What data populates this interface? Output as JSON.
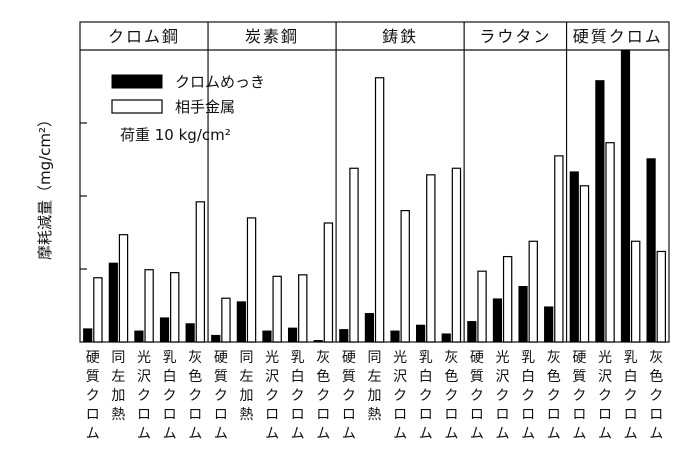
{
  "chart_data": {
    "type": "bar",
    "title": "",
    "ylabel": "摩耗減量（mg/cm²）",
    "xlabel": "",
    "ylim": [
      0,
      4
    ],
    "grid": false,
    "legend_position": "top-left",
    "annotation": "荷重 10 kg/cm²",
    "series": [
      {
        "name": "クロムめっき",
        "color": "#000000"
      },
      {
        "name": "相手金属",
        "color": "#ffffff"
      }
    ],
    "groups": [
      {
        "name": "クロム鋼",
        "categories": [
          "硬質クロム",
          "同左加熱",
          "光沢クロム",
          "乳白クロム",
          "灰色クロム"
        ],
        "values": [
          [
            0.18,
            0.88
          ],
          [
            1.08,
            1.47
          ],
          [
            0.15,
            0.99
          ],
          [
            0.33,
            0.95
          ],
          [
            0.25,
            1.92
          ]
        ]
      },
      {
        "name": "炭素鋼",
        "categories": [
          "硬質クロム",
          "同左加熱",
          "光沢クロム",
          "乳白クロム",
          "灰色クロム"
        ],
        "values": [
          [
            0.09,
            0.6
          ],
          [
            0.55,
            1.7
          ],
          [
            0.15,
            0.9
          ],
          [
            0.19,
            0.92
          ],
          [
            0.02,
            1.63
          ]
        ]
      },
      {
        "name": "鋳鉄",
        "categories": [
          "硬質クロム",
          "同左加熱",
          "光沢クロム",
          "乳白クロム",
          "灰色クロム"
        ],
        "values": [
          [
            0.17,
            2.38
          ],
          [
            0.39,
            3.62
          ],
          [
            0.15,
            1.8
          ],
          [
            0.23,
            2.29
          ],
          [
            0.11,
            2.38
          ]
        ]
      },
      {
        "name": "ラウタン",
        "categories": [
          "硬質クロム",
          "光沢クロム",
          "乳白クロム",
          "灰色クロム"
        ],
        "values": [
          [
            0.28,
            0.97
          ],
          [
            0.59,
            1.17
          ],
          [
            0.76,
            1.38
          ],
          [
            0.48,
            2.55
          ]
        ]
      },
      {
        "name": "硬質クロム",
        "categories": [
          "硬質クロム",
          "光沢クロム",
          "乳白クロム",
          "灰色クロム"
        ],
        "values": [
          [
            2.33,
            2.14
          ],
          [
            3.58,
            2.73
          ],
          [
            4.0,
            1.38
          ],
          [
            2.51,
            1.24
          ]
        ],
        "extra_open_to_top": [
          false,
          false,
          true,
          true
        ]
      }
    ]
  }
}
